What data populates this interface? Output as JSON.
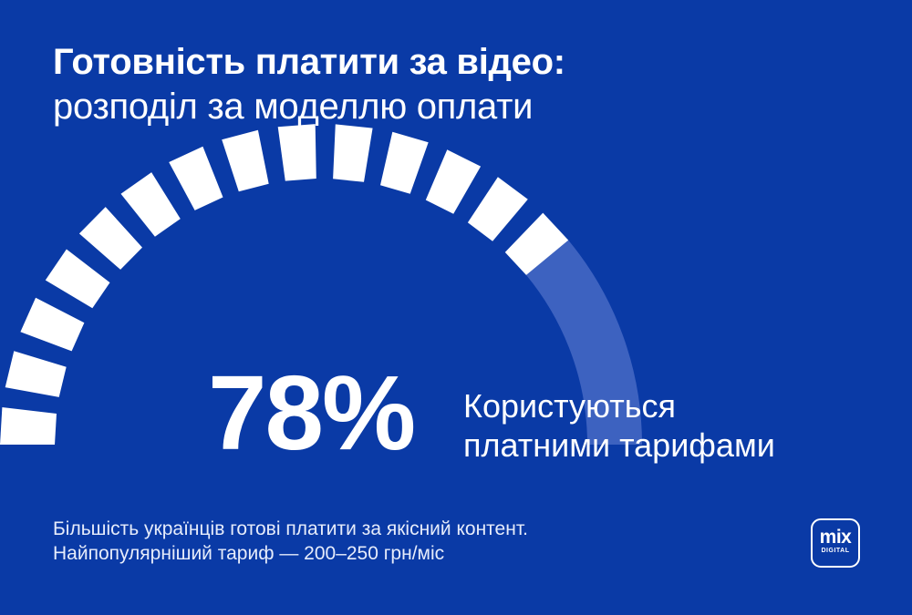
{
  "header": {
    "title": "Готовність платити за відео:",
    "subtitle": "розподіл за моделлю оплати"
  },
  "chart_data": {
    "type": "gauge",
    "value": 78,
    "max": 100,
    "value_text": "78%",
    "label_lines": [
      "Користуються",
      "платними тарифами"
    ],
    "fill_color": "#ffffff",
    "track_color": "#3d62c0"
  },
  "footer": {
    "lines": [
      "Більшість українців готові платити за якісний контент.",
      "Найпопулярніший тариф — 200–250 грн/міс"
    ]
  },
  "logo": {
    "main": "mix",
    "sub": "DIGITAL"
  }
}
